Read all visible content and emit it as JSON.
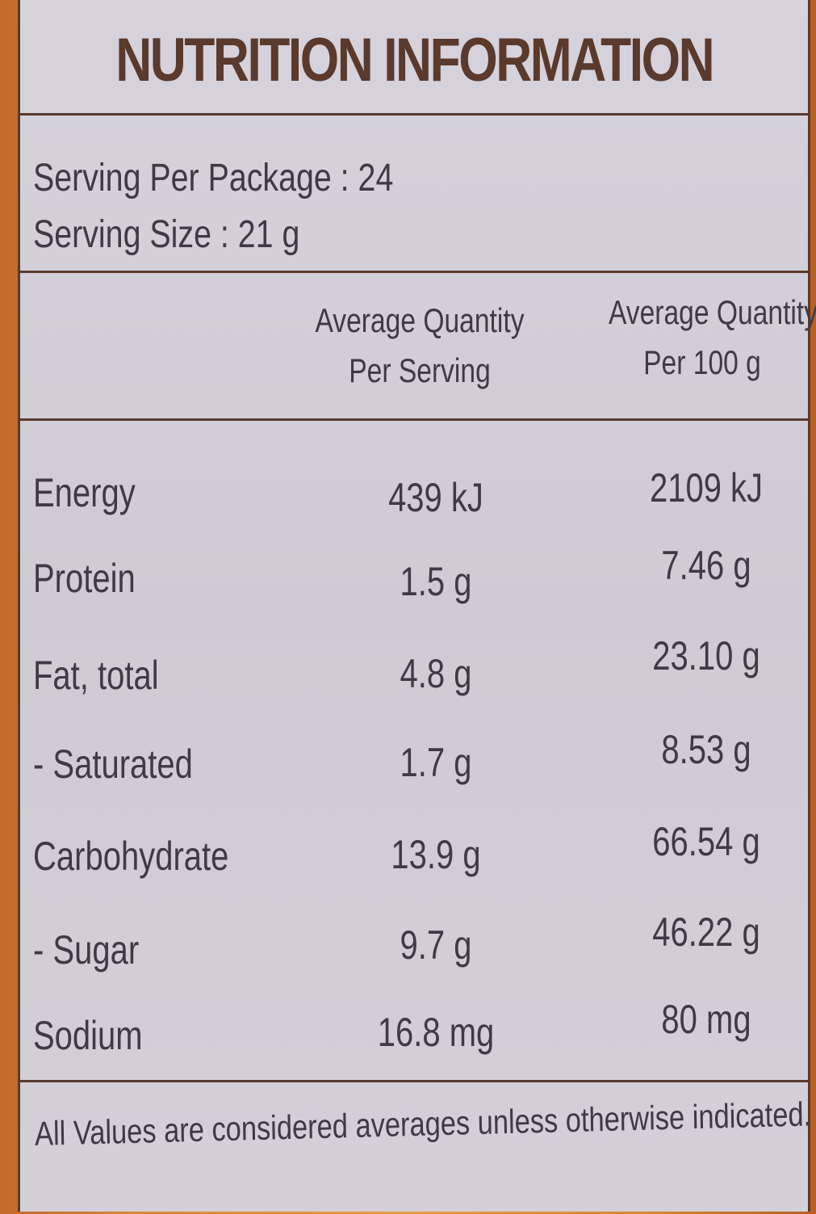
{
  "label": {
    "title": "NUTRITION INFORMATION",
    "servings_per_package": "Serving Per Package : 24",
    "serving_size": "Serving Size : 21 g",
    "columns": {
      "per_serving": [
        "Average Quantity",
        "Per Serving"
      ],
      "per_100g": [
        "Average Quantity",
        "Per 100 g"
      ]
    },
    "rows": [
      {
        "name": "Energy",
        "per_serving": "439 kJ",
        "per_100g": "2109 kJ"
      },
      {
        "name": "Protein",
        "per_serving": "1.5 g",
        "per_100g": "7.46 g"
      },
      {
        "name": "Fat, total",
        "per_serving": "4.8 g",
        "per_100g": "23.10 g"
      },
      {
        "name": "- Saturated",
        "per_serving": "1.7 g",
        "per_100g": "8.53 g"
      },
      {
        "name": "Carbohydrate",
        "per_serving": "13.9 g",
        "per_100g": "66.54 g"
      },
      {
        "name": "- Sugar",
        "per_serving": "9.7 g",
        "per_100g": "46.22 g"
      },
      {
        "name": "Sodium",
        "per_serving": "16.8 mg",
        "per_100g": "80 mg"
      }
    ],
    "footer": "All Values are considered averages unless otherwise indicated."
  },
  "colors": {
    "panel": "#d2cfd9",
    "text": "#3e3a46",
    "title": "#5a3a2c",
    "rules": "#5a3a2c",
    "packaging": "#d9873f"
  }
}
